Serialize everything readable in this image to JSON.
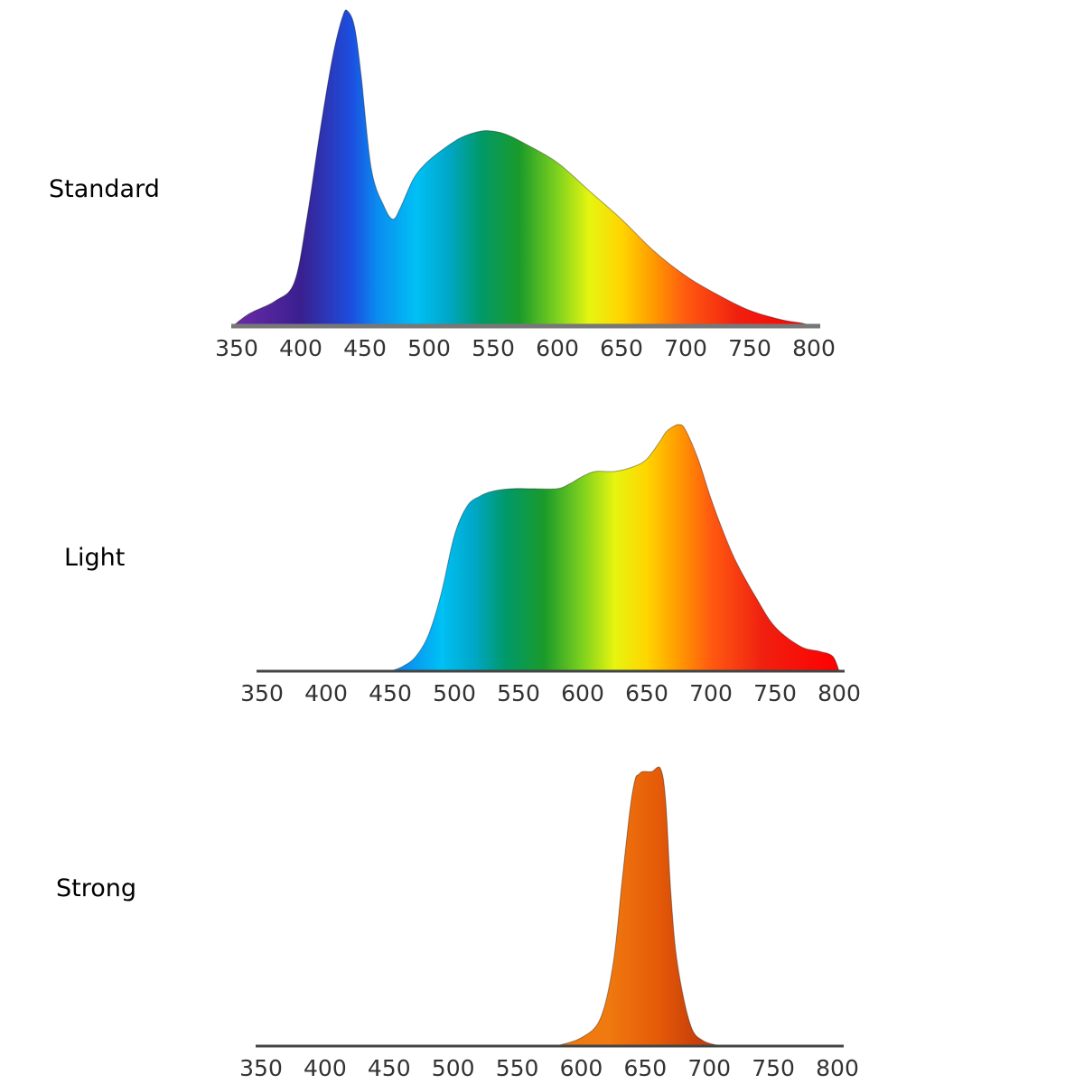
{
  "colors": {
    "baseline_standard": "#777777",
    "baseline": "#444444",
    "spectrum_stops": [
      {
        "nm": 350,
        "color": "#6a2aa8"
      },
      {
        "nm": 400,
        "color": "#3a1f8f"
      },
      {
        "nm": 440,
        "color": "#1c4fe0"
      },
      {
        "nm": 460,
        "color": "#0a8cf0"
      },
      {
        "nm": 490,
        "color": "#00c0f5"
      },
      {
        "nm": 515,
        "color": "#00a7c8"
      },
      {
        "nm": 540,
        "color": "#00996a"
      },
      {
        "nm": 570,
        "color": "#1a9a2a"
      },
      {
        "nm": 600,
        "color": "#7fd21e"
      },
      {
        "nm": 625,
        "color": "#e6f510"
      },
      {
        "nm": 650,
        "color": "#ffd500"
      },
      {
        "nm": 675,
        "color": "#ff9a00"
      },
      {
        "nm": 700,
        "color": "#ff5a10"
      },
      {
        "nm": 740,
        "color": "#f02010"
      },
      {
        "nm": 800,
        "color": "#ff0000"
      }
    ],
    "strong_fill": [
      "#f07a10",
      "#e65c08",
      "#c9400a"
    ]
  },
  "chart_data": [
    {
      "name": "Standard",
      "type": "area",
      "xlim": [
        350,
        800
      ],
      "ylim": [
        0,
        100
      ],
      "ticks": [
        350,
        400,
        450,
        500,
        550,
        600,
        650,
        700,
        750,
        800
      ],
      "tick_labels": [
        "350",
        "400",
        "450",
        "500",
        "550",
        "600",
        "650",
        "700",
        "750",
        "800"
      ],
      "x": [
        347,
        360,
        380,
        395,
        405,
        415,
        425,
        433,
        437,
        442,
        447,
        455,
        465,
        472,
        478,
        488,
        498,
        510,
        525,
        540,
        550,
        560,
        575,
        600,
        625,
        650,
        675,
        700,
        725,
        750,
        775,
        790,
        800
      ],
      "y": [
        0,
        4,
        8,
        14,
        35,
        62,
        86,
        99,
        100,
        95,
        80,
        50,
        38,
        34,
        38,
        47,
        52,
        56,
        60,
        62,
        62,
        61,
        58,
        52,
        43,
        34,
        24,
        16,
        10,
        5,
        2,
        1,
        0
      ]
    },
    {
      "name": "Light",
      "type": "area",
      "xlim": [
        350,
        800
      ],
      "ylim": [
        0,
        100
      ],
      "ticks": [
        350,
        400,
        450,
        500,
        550,
        600,
        650,
        700,
        750,
        800
      ],
      "tick_labels": [
        "350",
        "400",
        "450",
        "500",
        "550",
        "600",
        "650",
        "700",
        "750",
        "800"
      ],
      "x": [
        450,
        460,
        470,
        480,
        490,
        500,
        510,
        520,
        530,
        545,
        560,
        580,
        590,
        600,
        610,
        625,
        640,
        650,
        660,
        665,
        670,
        675,
        680,
        690,
        700,
        710,
        720,
        735,
        750,
        770,
        785,
        795,
        800
      ],
      "y": [
        0,
        2,
        6,
        15,
        32,
        55,
        67,
        71,
        73,
        74,
        74,
        74,
        76,
        79,
        81,
        81,
        83,
        86,
        93,
        97,
        99,
        100,
        98,
        86,
        70,
        56,
        44,
        30,
        18,
        10,
        8,
        6,
        0
      ]
    },
    {
      "name": "Strong",
      "type": "area",
      "xlim": [
        350,
        800
      ],
      "ylim": [
        0,
        100
      ],
      "ticks": [
        350,
        400,
        450,
        500,
        550,
        600,
        650,
        700,
        750,
        800
      ],
      "tick_labels": [
        "350",
        "400",
        "450",
        "500",
        "550",
        "600",
        "650",
        "700",
        "750",
        "800"
      ],
      "x": [
        580,
        600,
        615,
        625,
        632,
        638,
        642,
        645,
        648,
        655,
        662,
        666,
        670,
        675,
        685,
        695,
        710
      ],
      "y": [
        0,
        3,
        10,
        30,
        60,
        85,
        96,
        98,
        99,
        99,
        100,
        88,
        55,
        30,
        8,
        2,
        0
      ]
    }
  ],
  "labels": {
    "standard": "Standard",
    "light": "Light",
    "strong": "Strong"
  }
}
